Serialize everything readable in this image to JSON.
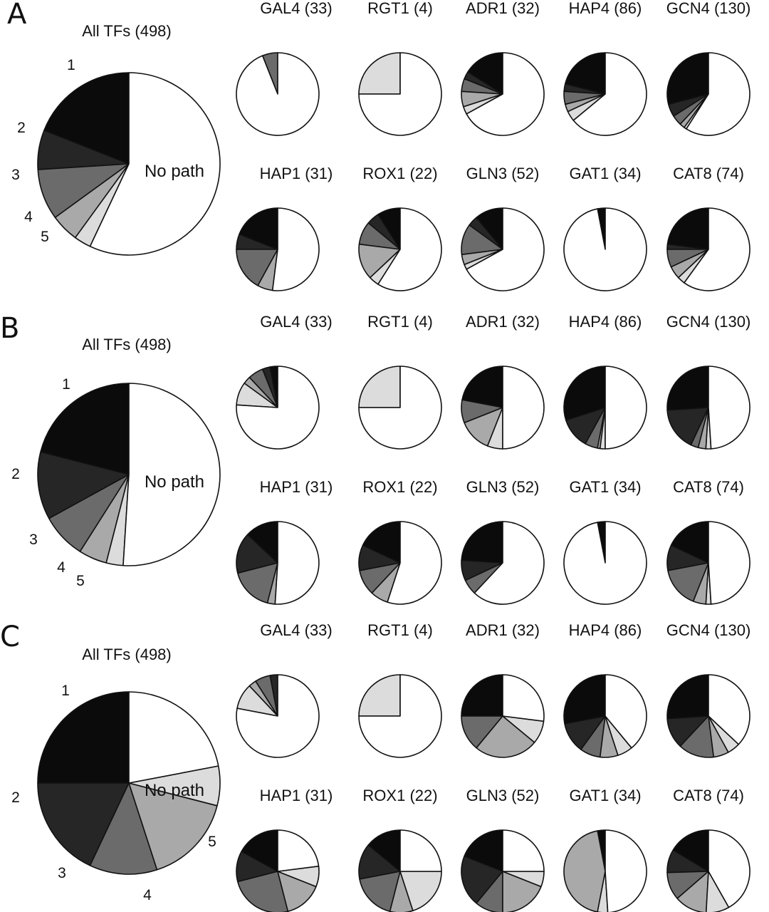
{
  "colors": {
    "1": "#0b0b0b",
    "2": "#262626",
    "3": "#6b6b6b",
    "4": "#a9a9a9",
    "5": "#dcdcdc",
    "none": "#ffffff"
  },
  "category_labels": {
    "1": "1",
    "2": "2",
    "3": "3",
    "4": "4",
    "5": "5",
    "none": "No path"
  },
  "chart_data": [
    {
      "panel": "A",
      "type": "pie",
      "charts": [
        {
          "title": "All TFs (498)",
          "slices": [
            [
              "1",
              0.19
            ],
            [
              "2",
              0.07
            ],
            [
              "3",
              0.09
            ],
            [
              "4",
              0.05
            ],
            [
              "5",
              0.03
            ],
            [
              "none",
              0.57
            ]
          ]
        },
        {
          "title": "GAL4 (33)",
          "slices": [
            [
              "3",
              0.06
            ],
            [
              "none",
              0.94
            ]
          ]
        },
        {
          "title": "RGT1 (4)",
          "slices": [
            [
              "5",
              0.25
            ],
            [
              "none",
              0.75
            ]
          ]
        },
        {
          "title": "ADR1 (32)",
          "slices": [
            [
              "1",
              0.16
            ],
            [
              "2",
              0.03
            ],
            [
              "3",
              0.05
            ],
            [
              "4",
              0.06
            ],
            [
              "5",
              0.03
            ],
            [
              "none",
              0.67
            ]
          ]
        },
        {
          "title": "HAP4 (86)",
          "slices": [
            [
              "1",
              0.21
            ],
            [
              "2",
              0.03
            ],
            [
              "3",
              0.05
            ],
            [
              "4",
              0.03
            ],
            [
              "5",
              0.04
            ],
            [
              "none",
              0.64
            ]
          ]
        },
        {
          "title": "GCN4 (130)",
          "slices": [
            [
              "1",
              0.29
            ],
            [
              "2",
              0.05
            ],
            [
              "3",
              0.04
            ],
            [
              "4",
              0.02
            ],
            [
              "5",
              0.01
            ],
            [
              "none",
              0.59
            ]
          ]
        },
        {
          "title": "HAP1 (31)",
          "slices": [
            [
              "1",
              0.19
            ],
            [
              "2",
              0.06
            ],
            [
              "3",
              0.17
            ],
            [
              "4",
              0.06
            ],
            [
              "none",
              0.52
            ]
          ]
        },
        {
          "title": "ROX1 (22)",
          "slices": [
            [
              "1",
              0.09
            ],
            [
              "2",
              0.05
            ],
            [
              "3",
              0.09
            ],
            [
              "4",
              0.14
            ],
            [
              "5",
              0.04
            ],
            [
              "none",
              0.59
            ]
          ]
        },
        {
          "title": "GLN3 (52)",
          "slices": [
            [
              "1",
              0.11
            ],
            [
              "2",
              0.04
            ],
            [
              "3",
              0.12
            ],
            [
              "4",
              0.04
            ],
            [
              "5",
              0.02
            ],
            [
              "none",
              0.67
            ]
          ]
        },
        {
          "title": "GAT1 (34)",
          "slices": [
            [
              "1",
              0.03
            ],
            [
              "none",
              0.97
            ]
          ]
        },
        {
          "title": "CAT8 (74)",
          "slices": [
            [
              "1",
              0.23
            ],
            [
              "2",
              0.02
            ],
            [
              "3",
              0.07
            ],
            [
              "4",
              0.05
            ],
            [
              "5",
              0.03
            ],
            [
              "none",
              0.6
            ]
          ]
        }
      ]
    },
    {
      "panel": "B",
      "type": "pie",
      "charts": [
        {
          "title": "All TFs (498)",
          "slices": [
            [
              "1",
              0.21
            ],
            [
              "2",
              0.12
            ],
            [
              "3",
              0.08
            ],
            [
              "4",
              0.05
            ],
            [
              "5",
              0.03
            ],
            [
              "none",
              0.51
            ]
          ]
        },
        {
          "title": "GAL4 (33)",
          "slices": [
            [
              "1",
              0.03
            ],
            [
              "2",
              0.03
            ],
            [
              "3",
              0.06
            ],
            [
              "4",
              0.03
            ],
            [
              "5",
              0.09
            ],
            [
              "none",
              0.76
            ]
          ]
        },
        {
          "title": "RGT1 (4)",
          "slices": [
            [
              "5",
              0.25
            ],
            [
              "none",
              0.75
            ]
          ]
        },
        {
          "title": "ADR1 (32)",
          "slices": [
            [
              "1",
              0.22
            ],
            [
              "3",
              0.09
            ],
            [
              "4",
              0.13
            ],
            [
              "5",
              0.06
            ],
            [
              "none",
              0.5
            ]
          ]
        },
        {
          "title": "HAP4 (86)",
          "slices": [
            [
              "1",
              0.3
            ],
            [
              "2",
              0.12
            ],
            [
              "3",
              0.05
            ],
            [
              "4",
              0.01
            ],
            [
              "5",
              0.02
            ],
            [
              "none",
              0.5
            ]
          ]
        },
        {
          "title": "GCN4 (130)",
          "slices": [
            [
              "1",
              0.26
            ],
            [
              "2",
              0.17
            ],
            [
              "3",
              0.03
            ],
            [
              "4",
              0.03
            ],
            [
              "5",
              0.02
            ],
            [
              "none",
              0.49
            ]
          ]
        },
        {
          "title": "HAP1 (31)",
          "slices": [
            [
              "1",
              0.13
            ],
            [
              "2",
              0.16
            ],
            [
              "3",
              0.17
            ],
            [
              "4",
              0.03
            ],
            [
              "none",
              0.51
            ]
          ]
        },
        {
          "title": "ROX1 (22)",
          "slices": [
            [
              "1",
              0.18
            ],
            [
              "2",
              0.1
            ],
            [
              "3",
              0.1
            ],
            [
              "4",
              0.07
            ],
            [
              "none",
              0.55
            ]
          ]
        },
        {
          "title": "GLN3 (52)",
          "slices": [
            [
              "1",
              0.24
            ],
            [
              "2",
              0.08
            ],
            [
              "3",
              0.06
            ],
            [
              "none",
              0.62
            ]
          ]
        },
        {
          "title": "GAT1 (34)",
          "slices": [
            [
              "1",
              0.03
            ],
            [
              "none",
              0.97
            ]
          ]
        },
        {
          "title": "CAT8 (74)",
          "slices": [
            [
              "1",
              0.18
            ],
            [
              "2",
              0.1
            ],
            [
              "3",
              0.16
            ],
            [
              "4",
              0.05
            ],
            [
              "5",
              0.02
            ],
            [
              "none",
              0.49
            ]
          ]
        }
      ]
    },
    {
      "panel": "C",
      "type": "pie",
      "charts": [
        {
          "title": "All TFs (498)",
          "slices": [
            [
              "1",
              0.25
            ],
            [
              "2",
              0.18
            ],
            [
              "3",
              0.12
            ],
            [
              "4",
              0.16
            ],
            [
              "5",
              0.07
            ],
            [
              "none",
              0.22
            ]
          ]
        },
        {
          "title": "GAL4 (33)",
          "slices": [
            [
              "2",
              0.03
            ],
            [
              "3",
              0.06
            ],
            [
              "4",
              0.03
            ],
            [
              "5",
              0.1
            ],
            [
              "none",
              0.78
            ]
          ]
        },
        {
          "title": "RGT1 (4)",
          "slices": [
            [
              "5",
              0.25
            ],
            [
              "none",
              0.75
            ]
          ]
        },
        {
          "title": "ADR1 (32)",
          "slices": [
            [
              "1",
              0.25
            ],
            [
              "3",
              0.14
            ],
            [
              "4",
              0.25
            ],
            [
              "5",
              0.09
            ],
            [
              "none",
              0.27
            ]
          ]
        },
        {
          "title": "HAP4 (86)",
          "slices": [
            [
              "1",
              0.28
            ],
            [
              "2",
              0.12
            ],
            [
              "3",
              0.08
            ],
            [
              "4",
              0.07
            ],
            [
              "5",
              0.06
            ],
            [
              "none",
              0.39
            ]
          ]
        },
        {
          "title": "GCN4 (130)",
          "slices": [
            [
              "1",
              0.26
            ],
            [
              "2",
              0.12
            ],
            [
              "3",
              0.14
            ],
            [
              "4",
              0.06
            ],
            [
              "5",
              0.05
            ],
            [
              "none",
              0.37
            ]
          ]
        },
        {
          "title": "HAP1 (31)",
          "slices": [
            [
              "1",
              0.17
            ],
            [
              "2",
              0.12
            ],
            [
              "3",
              0.25
            ],
            [
              "4",
              0.15
            ],
            [
              "5",
              0.08
            ],
            [
              "none",
              0.23
            ]
          ]
        },
        {
          "title": "ROX1 (22)",
          "slices": [
            [
              "1",
              0.14
            ],
            [
              "2",
              0.14
            ],
            [
              "3",
              0.18
            ],
            [
              "4",
              0.09
            ],
            [
              "5",
              0.2
            ],
            [
              "none",
              0.25
            ]
          ]
        },
        {
          "title": "GLN3 (52)",
          "slices": [
            [
              "1",
              0.19
            ],
            [
              "2",
              0.2
            ],
            [
              "3",
              0.11
            ],
            [
              "4",
              0.19
            ],
            [
              "5",
              0.06
            ],
            [
              "none",
              0.25
            ]
          ]
        },
        {
          "title": "GAT1 (34)",
          "slices": [
            [
              "1",
              0.03
            ],
            [
              "4",
              0.44
            ],
            [
              "5",
              0.04
            ],
            [
              "none",
              0.49
            ]
          ]
        },
        {
          "title": "CAT8 (74)",
          "slices": [
            [
              "1",
              0.18
            ],
            [
              "2",
              0.1
            ],
            [
              "3",
              0.12
            ],
            [
              "4",
              0.14
            ],
            [
              "5",
              0.1
            ],
            [
              "none",
              0.46
            ]
          ]
        }
      ]
    }
  ]
}
